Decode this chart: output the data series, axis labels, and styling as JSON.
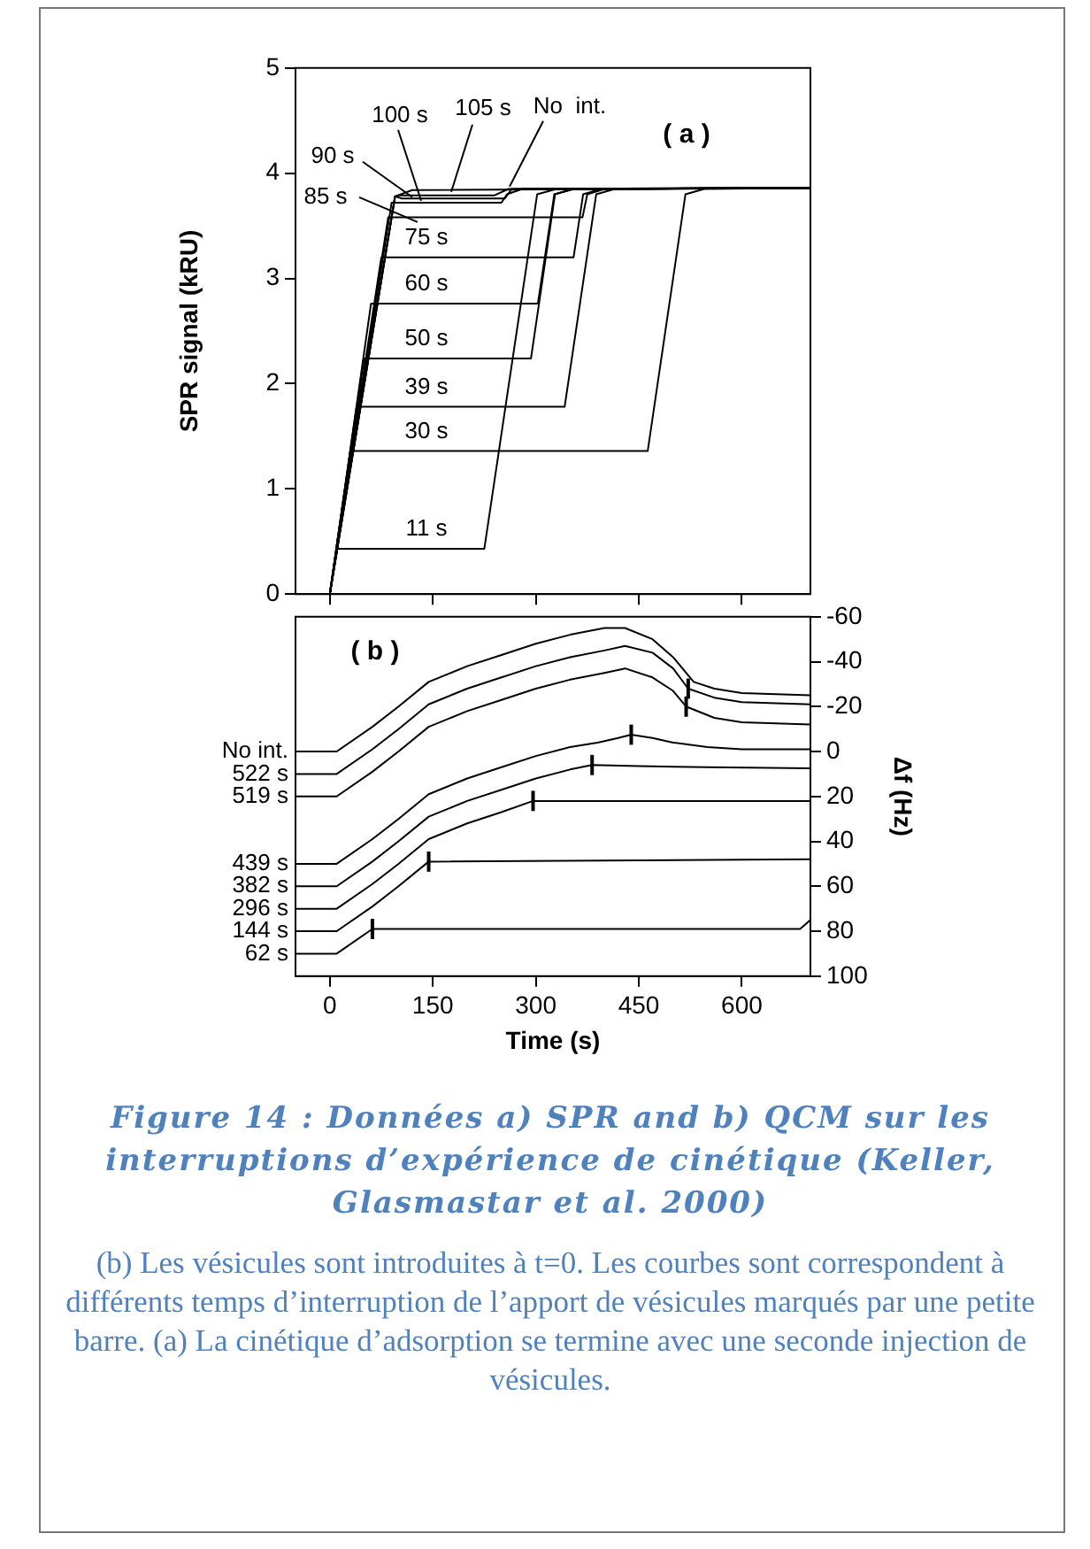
{
  "chart_data": [
    {
      "type": "line",
      "title": "( a )",
      "ylabel": "SPR signal (kRU)",
      "xlim": [
        -50,
        700
      ],
      "xticks": [
        0,
        150,
        300,
        450,
        600
      ],
      "ylim": [
        0,
        5
      ],
      "yticks": [
        0,
        1,
        2,
        3,
        4,
        5
      ],
      "tick_labels": "y",
      "grid": false,
      "marker": "none",
      "series": [
        {
          "name": "11 s",
          "color": "#000000",
          "x": [
            -50,
            0,
            11,
            225,
            302,
            330,
            700
          ],
          "values": [
            0,
            0,
            0.43,
            0.43,
            3.8,
            3.85,
            3.86
          ]
        },
        {
          "name": "30 s",
          "color": "#000000",
          "x": [
            -50,
            0,
            30,
            463,
            518,
            545,
            700
          ],
          "values": [
            0,
            0,
            1.36,
            1.36,
            3.8,
            3.85,
            3.86
          ]
        },
        {
          "name": "39 s",
          "color": "#000000",
          "x": [
            -50,
            0,
            39,
            342,
            388,
            415,
            700
          ],
          "values": [
            0,
            0,
            1.78,
            1.78,
            3.8,
            3.85,
            3.86
          ]
        },
        {
          "name": "50 s",
          "color": "#000000",
          "x": [
            -50,
            0,
            50,
            293,
            328,
            355,
            700
          ],
          "values": [
            0,
            0,
            2.24,
            2.24,
            3.8,
            3.85,
            3.86
          ]
        },
        {
          "name": "60 s",
          "color": "#000000",
          "x": [
            -50,
            0,
            60,
            303,
            327,
            355,
            700
          ],
          "values": [
            0,
            0,
            2.76,
            2.76,
            3.8,
            3.85,
            3.86
          ]
        },
        {
          "name": "75 s",
          "color": "#000000",
          "x": [
            -50,
            0,
            75,
            355,
            369,
            395,
            700
          ],
          "values": [
            0,
            0,
            3.2,
            3.2,
            3.8,
            3.85,
            3.86
          ]
        },
        {
          "name": "85 s",
          "color": "#000000",
          "x": [
            -50,
            0,
            85,
            368,
            375,
            400,
            700
          ],
          "values": [
            0,
            0,
            3.58,
            3.58,
            3.8,
            3.85,
            3.86
          ]
        },
        {
          "name": "90 s",
          "color": "#000000",
          "x": [
            -50,
            0,
            90,
            250,
            258,
            280,
            700
          ],
          "values": [
            0,
            0,
            3.72,
            3.72,
            3.8,
            3.85,
            3.86
          ]
        },
        {
          "name": "100 s",
          "color": "#000000",
          "x": [
            -50,
            0,
            95,
            100,
            240,
            260,
            700
          ],
          "values": [
            0,
            0,
            3.78,
            3.79,
            3.79,
            3.85,
            3.86
          ]
        },
        {
          "name": "105 s",
          "color": "#000000",
          "x": [
            -50,
            0,
            95,
            105,
            255,
            265,
            700
          ],
          "values": [
            0,
            0,
            3.78,
            3.76,
            3.76,
            3.85,
            3.86
          ]
        },
        {
          "name": "No  int.",
          "color": "#000000",
          "x": [
            -50,
            0,
            95,
            120,
            700
          ],
          "values": [
            0,
            0,
            3.78,
            3.84,
            3.86
          ]
        }
      ]
    },
    {
      "type": "line",
      "title": "( b )",
      "xlabel": "Time (s)",
      "ylabel": "Δf (Hz)",
      "xlim": [
        -50,
        700
      ],
      "xticks": [
        0,
        150,
        300,
        450,
        600
      ],
      "ylim": [
        100,
        -60
      ],
      "yticks": [
        -60,
        -40,
        -20,
        0,
        20,
        40,
        60,
        80,
        100
      ],
      "grid": false,
      "marker": "none",
      "series": [
        {
          "name": "No int.",
          "color": "#000000",
          "x": [
            -50,
            0,
            10,
            62,
            100,
            144,
            200,
            250,
            300,
            350,
            400,
            430,
            470,
            500,
            530,
            560,
            600,
            650,
            700
          ],
          "values": [
            0,
            0,
            0,
            -11,
            -20,
            -31,
            -38,
            -43,
            -48,
            -52,
            -55,
            -55,
            -50,
            -42,
            -31,
            -28,
            -26,
            -25.5,
            -25
          ]
        },
        {
          "name": "522 s",
          "color": "#000000",
          "x": [
            -50,
            0,
            10,
            62,
            100,
            144,
            200,
            250,
            300,
            350,
            400,
            430,
            470,
            500,
            522,
            560,
            600,
            700
          ],
          "values": [
            10,
            10,
            10,
            -1,
            -10,
            -21,
            -28,
            -33,
            -38,
            -42,
            -45,
            -47,
            -44,
            -37,
            -28,
            -24,
            -22,
            -21
          ],
          "errors": [
            null,
            null,
            null,
            null,
            null,
            null,
            null,
            null,
            null,
            null,
            null,
            null,
            null,
            null,
            4.5,
            null,
            null,
            null
          ]
        },
        {
          "name": "519 s",
          "color": "#000000",
          "x": [
            -50,
            0,
            10,
            62,
            100,
            144,
            200,
            250,
            300,
            350,
            400,
            430,
            470,
            500,
            519,
            560,
            600,
            700
          ],
          "values": [
            20,
            20,
            20,
            9,
            0,
            -11,
            -18,
            -23,
            -28,
            -32,
            -35,
            -37,
            -33,
            -27,
            -20,
            -15,
            -13,
            -12
          ],
          "errors": [
            null,
            null,
            null,
            null,
            null,
            null,
            null,
            null,
            null,
            null,
            null,
            null,
            null,
            null,
            4.5,
            null,
            null,
            null
          ]
        },
        {
          "name": "439 s",
          "color": "#000000",
          "x": [
            -50,
            0,
            10,
            62,
            100,
            144,
            200,
            250,
            300,
            350,
            390,
            420,
            439,
            470,
            500,
            550,
            600,
            700
          ],
          "values": [
            50,
            50,
            50,
            39,
            30,
            19,
            12,
            7,
            2,
            -2,
            -4,
            -6,
            -7.5,
            -6,
            -4,
            -2,
            -1,
            -1
          ],
          "errors": [
            null,
            null,
            null,
            null,
            null,
            null,
            null,
            null,
            null,
            null,
            null,
            null,
            4.5,
            null,
            null,
            null,
            null,
            null
          ]
        },
        {
          "name": "382 s",
          "color": "#000000",
          "x": [
            -50,
            0,
            10,
            62,
            100,
            144,
            200,
            250,
            300,
            350,
            382,
            450,
            550,
            700
          ],
          "values": [
            60,
            60,
            60,
            49,
            40,
            29,
            22,
            17,
            12,
            8,
            6,
            6.5,
            7,
            7.5
          ],
          "errors": [
            null,
            null,
            null,
            null,
            null,
            null,
            null,
            null,
            null,
            null,
            4.5,
            null,
            null,
            null
          ]
        },
        {
          "name": "296 s",
          "color": "#000000",
          "x": [
            -50,
            0,
            10,
            62,
            100,
            144,
            200,
            250,
            296,
            700
          ],
          "values": [
            70,
            70,
            70,
            59,
            50,
            39,
            32,
            27,
            22,
            22
          ],
          "errors": [
            null,
            null,
            null,
            null,
            null,
            null,
            null,
            null,
            4.5,
            null
          ]
        },
        {
          "name": "144 s",
          "color": "#000000",
          "x": [
            -50,
            0,
            10,
            62,
            100,
            144,
            700
          ],
          "values": [
            80,
            80,
            80,
            69,
            60,
            49,
            48
          ],
          "errors": [
            null,
            null,
            null,
            null,
            null,
            4.5,
            null
          ]
        },
        {
          "name": "62 s",
          "color": "#000000",
          "x": [
            -50,
            0,
            10,
            62,
            685,
            700
          ],
          "values": [
            90,
            90,
            90,
            79,
            79,
            75
          ],
          "errors": [
            null,
            null,
            null,
            4.5,
            null,
            null
          ]
        }
      ],
      "annotations": [
        "Figure 14 : Données a) SPR and b) QCM sur les interruptions d’expérience de cinétique (Keller, Glasmastar et al. 2000)",
        "(b) Les vésicules sont introduites à t=0. Les courbes sont correspondent à différents temps d’interruption de l’apport de vésicules marqués par une petite barre. (a) La cinétique d’adsorption se termine avec une seconde injection de vésicules."
      ]
    }
  ]
}
